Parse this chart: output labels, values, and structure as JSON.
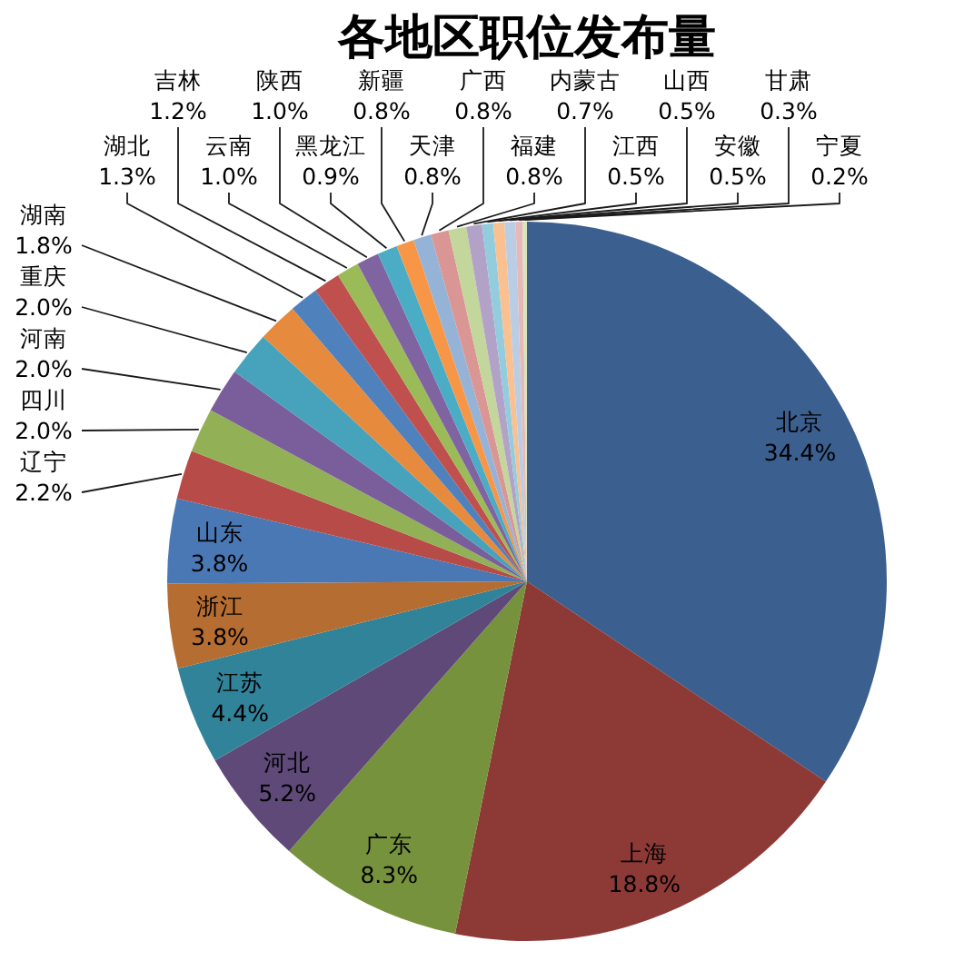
{
  "chart_data": {
    "type": "pie",
    "title": "各地区职位发布量",
    "categories": [
      "北京",
      "上海",
      "广东",
      "河北",
      "江苏",
      "浙江",
      "山东",
      "辽宁",
      "四川",
      "河南",
      "重庆",
      "湖南",
      "湖北",
      "吉林",
      "云南",
      "陕西",
      "黑龙江",
      "新疆",
      "天津",
      "广西",
      "福建",
      "内蒙古",
      "江西",
      "山西",
      "安徽",
      "甘肃",
      "宁夏"
    ],
    "values": [
      34.4,
      18.8,
      8.3,
      5.2,
      4.4,
      3.8,
      3.8,
      2.2,
      2.0,
      2.0,
      2.0,
      1.8,
      1.3,
      1.2,
      1.0,
      1.0,
      0.9,
      0.8,
      0.8,
      0.8,
      0.8,
      0.7,
      0.5,
      0.5,
      0.5,
      0.3,
      0.2
    ],
    "value_labels": [
      "34.4%",
      "18.8%",
      "8.3%",
      "5.2%",
      "4.4%",
      "3.8%",
      "3.8%",
      "2.2%",
      "2.0%",
      "2.0%",
      "2.0%",
      "1.8%",
      "1.3%",
      "1.2%",
      "1.0%",
      "1.0%",
      "0.9%",
      "0.8%",
      "0.8%",
      "0.8%",
      "0.8%",
      "0.7%",
      "0.5%",
      "0.5%",
      "0.5%",
      "0.3%",
      "0.2%"
    ],
    "colors": [
      "#3b5f8f",
      "#8d3a37",
      "#77923c",
      "#5e4978",
      "#31839a",
      "#b66d31",
      "#4a78b5",
      "#b64b48",
      "#92b055",
      "#7a5e9b",
      "#47a2bc",
      "#e68a3e",
      "#4f81bd",
      "#c0504d",
      "#9bbb59",
      "#8064a2",
      "#4bacc6",
      "#f79646",
      "#95b3d7",
      "#d99694",
      "#c3d69b",
      "#b3a2c7",
      "#93cddd",
      "#fac090",
      "#b9cde5",
      "#e6b9b8",
      "#d7e4bd"
    ]
  }
}
